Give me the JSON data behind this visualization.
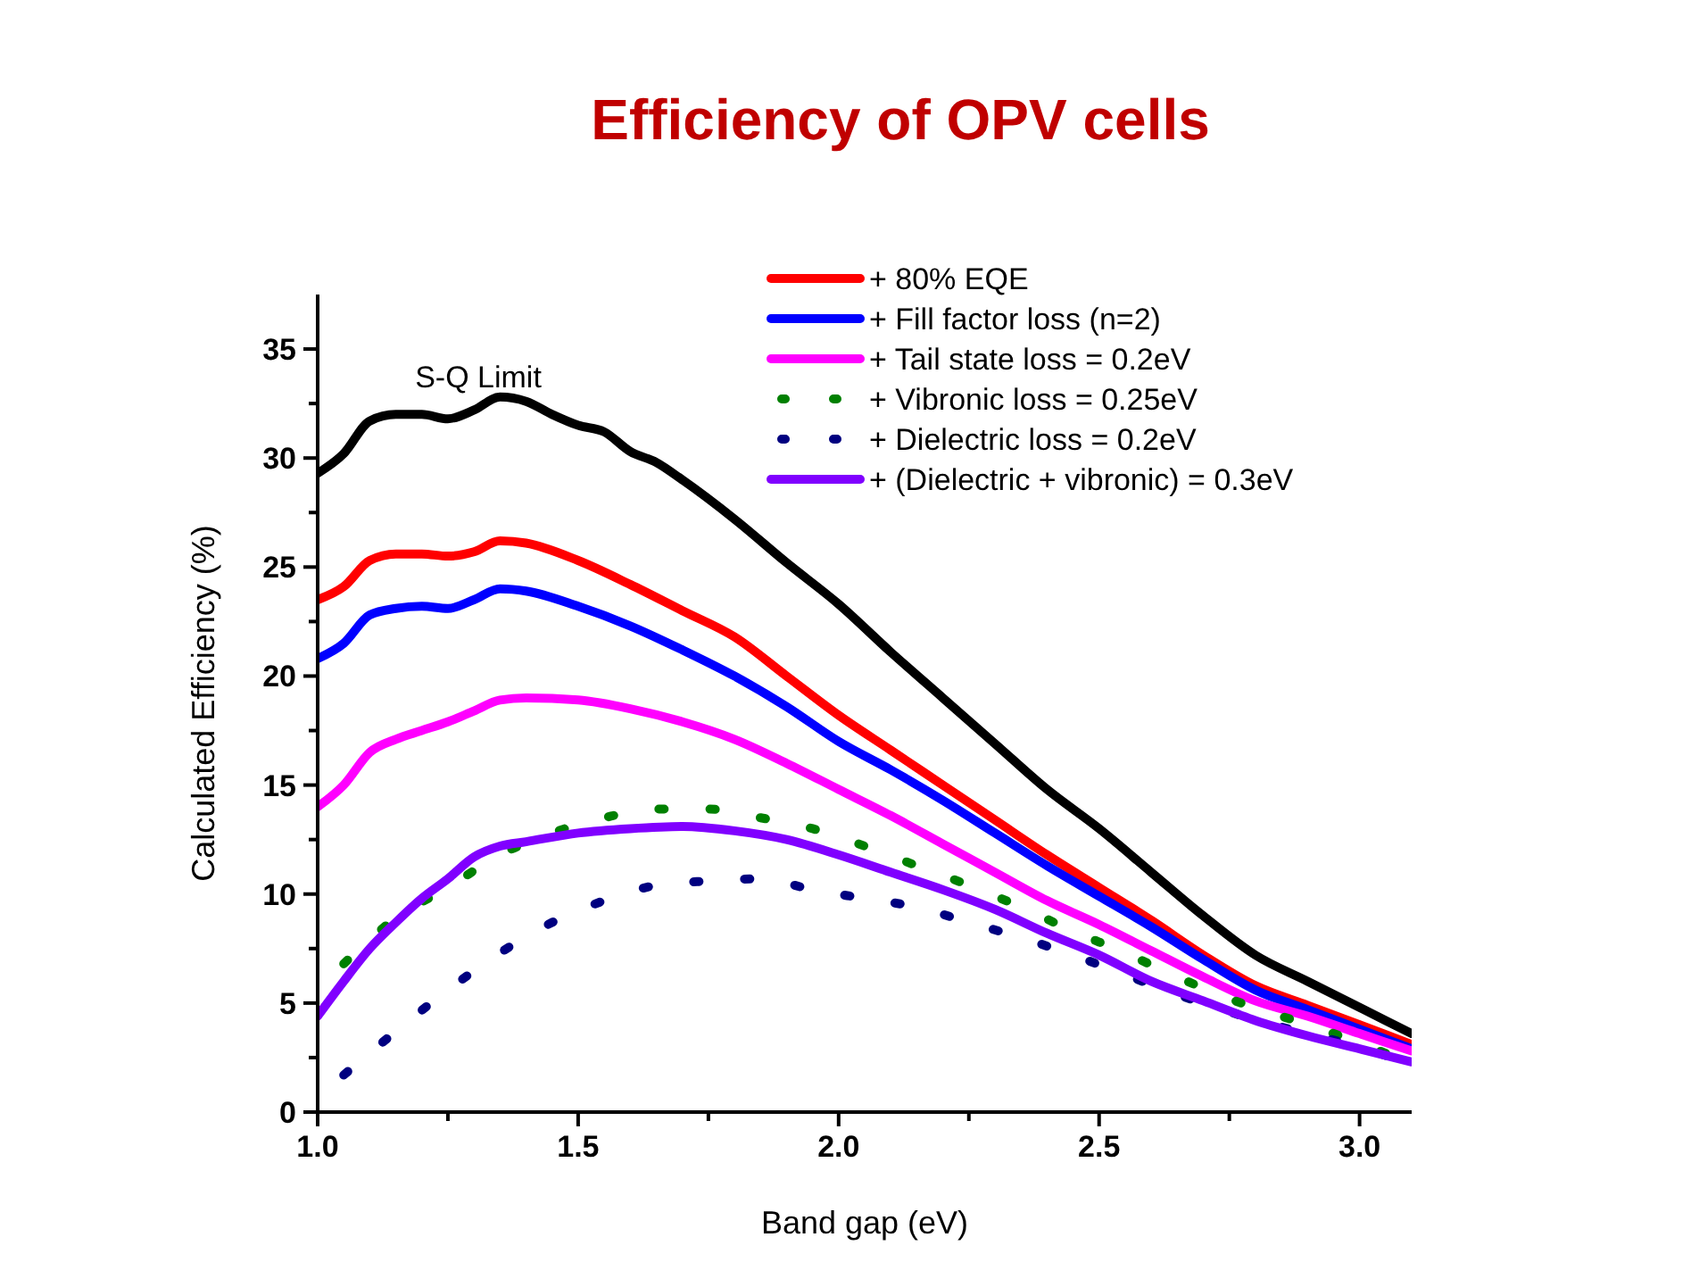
{
  "chart_data": {
    "type": "line",
    "title": "Efficiency of OPV cells",
    "xlabel": "Band gap (eV)",
    "ylabel": "Calculated Efficiency (%)",
    "xlim": [
      1.0,
      3.1
    ],
    "ylim": [
      0,
      37.5
    ],
    "xticks": [
      {
        "value": 1,
        "label": "1.0"
      },
      {
        "value": 1.25,
        "label": null
      },
      {
        "value": 1.5,
        "label": "1.5"
      },
      {
        "value": 1.75,
        "label": null
      },
      {
        "value": 2,
        "label": "2.0"
      },
      {
        "value": 2.25,
        "label": null
      },
      {
        "value": 2.5,
        "label": "2.5"
      },
      {
        "value": 2.75,
        "label": null
      },
      {
        "value": 3,
        "label": "3.0"
      }
    ],
    "yticks": [
      0,
      {
        "value": 2.5,
        "label": null
      },
      5,
      {
        "value": 7.5,
        "label": null
      },
      10,
      {
        "value": 12.5,
        "label": null
      },
      15,
      {
        "value": 17.5,
        "label": null
      },
      20,
      {
        "value": 22.5,
        "label": null
      },
      25,
      {
        "value": 27.5,
        "label": null
      },
      30,
      {
        "value": 32.5,
        "label": null
      },
      35
    ],
    "legend": "top right",
    "grid": false,
    "marker": "none",
    "annotations": [
      "S-Q Limit"
    ],
    "series": [
      {
        "color": "#000000",
        "line_style": "solid",
        "x": [
          1.0,
          1.05,
          1.1,
          1.15,
          1.2,
          1.25,
          1.3,
          1.35,
          1.4,
          1.45,
          1.5,
          1.55,
          1.6,
          1.65,
          1.7,
          1.8,
          1.9,
          2.0,
          2.1,
          2.2,
          2.3,
          2.4,
          2.5,
          2.6,
          2.7,
          2.8,
          2.9,
          3.0,
          3.1
        ],
        "values": [
          29.3,
          30.2,
          31.7,
          32.0,
          32.0,
          31.8,
          32.2,
          32.8,
          32.6,
          32.0,
          31.5,
          31.2,
          30.3,
          29.8,
          29.0,
          27.2,
          25.2,
          23.3,
          21.1,
          19.0,
          16.9,
          14.8,
          13.0,
          11.0,
          9.0,
          7.2,
          6.0,
          4.8,
          3.6
        ]
      },
      {
        "name": "+ 80% EQE",
        "color": "#ff0000",
        "line_style": "solid",
        "x": [
          1.0,
          1.05,
          1.1,
          1.15,
          1.2,
          1.25,
          1.3,
          1.35,
          1.4,
          1.5,
          1.6,
          1.7,
          1.8,
          1.9,
          2.0,
          2.1,
          2.2,
          2.3,
          2.4,
          2.5,
          2.6,
          2.7,
          2.8,
          2.9,
          3.0,
          3.1
        ],
        "values": [
          23.5,
          24.1,
          25.3,
          25.6,
          25.6,
          25.5,
          25.7,
          26.2,
          26.1,
          25.3,
          24.2,
          23.0,
          21.8,
          20.0,
          18.2,
          16.6,
          15.0,
          13.4,
          11.8,
          10.3,
          8.8,
          7.2,
          5.8,
          4.9,
          4.0,
          3.1
        ]
      },
      {
        "name": "+ Fill factor loss (n=2)",
        "color": "#0000ff",
        "line_style": "solid",
        "x": [
          1.0,
          1.05,
          1.1,
          1.15,
          1.2,
          1.25,
          1.3,
          1.35,
          1.4,
          1.5,
          1.6,
          1.7,
          1.8,
          1.9,
          2.0,
          2.1,
          2.2,
          2.3,
          2.4,
          2.5,
          2.6,
          2.7,
          2.8,
          2.9,
          3.0,
          3.1
        ],
        "values": [
          20.8,
          21.5,
          22.8,
          23.1,
          23.2,
          23.1,
          23.5,
          24.0,
          23.9,
          23.2,
          22.3,
          21.2,
          20.0,
          18.6,
          17.0,
          15.7,
          14.3,
          12.8,
          11.3,
          9.9,
          8.5,
          7.0,
          5.6,
          4.7,
          3.8,
          2.9
        ]
      },
      {
        "name": "+ Tail state loss = 0.2eV",
        "color": "#ff00ff",
        "line_style": "solid",
        "x": [
          1.0,
          1.05,
          1.1,
          1.15,
          1.2,
          1.25,
          1.3,
          1.35,
          1.4,
          1.5,
          1.6,
          1.7,
          1.8,
          1.9,
          2.0,
          2.1,
          2.2,
          2.3,
          2.4,
          2.5,
          2.6,
          2.7,
          2.8,
          2.9,
          3.0,
          3.1
        ],
        "values": [
          14.0,
          15.0,
          16.5,
          17.1,
          17.5,
          17.9,
          18.4,
          18.9,
          19.0,
          18.9,
          18.5,
          17.9,
          17.1,
          16.0,
          14.8,
          13.6,
          12.3,
          11.0,
          9.7,
          8.6,
          7.4,
          6.2,
          5.1,
          4.4,
          3.6,
          2.8
        ]
      },
      {
        "name": "+ Vibronic loss = 0.25eV",
        "color": "#008000",
        "line_style": "dotted",
        "x": [
          1.05,
          1.15,
          1.25,
          1.35,
          1.45,
          1.55,
          1.65,
          1.75,
          1.85,
          1.95,
          2.05,
          2.15,
          2.25,
          2.35,
          2.45,
          2.55,
          2.65,
          2.75,
          2.85,
          2.95,
          3.05
        ],
        "values": [
          6.8,
          8.9,
          10.3,
          11.8,
          12.8,
          13.5,
          13.9,
          13.9,
          13.5,
          13.0,
          12.2,
          11.3,
          10.4,
          9.4,
          8.3,
          7.3,
          6.2,
          5.2,
          4.4,
          3.6,
          2.7
        ]
      },
      {
        "name": "+ Dielectric loss = 0.2eV",
        "color": "#000080",
        "line_style": "dotted",
        "x": [
          1.05,
          1.15,
          1.25,
          1.35,
          1.45,
          1.55,
          1.65,
          1.75,
          1.85,
          1.95,
          2.05,
          2.15,
          2.25,
          2.35,
          2.45,
          2.55,
          2.65,
          2.75,
          2.85,
          2.95,
          3.05
        ],
        "values": [
          1.7,
          3.7,
          5.6,
          7.3,
          8.7,
          9.7,
          10.4,
          10.6,
          10.7,
          10.2,
          9.8,
          9.4,
          8.7,
          8.0,
          7.2,
          6.3,
          5.4,
          4.6,
          3.9,
          3.3,
          2.6
        ]
      },
      {
        "name": "+ (Dielectric + vibronic) = 0.3eV",
        "color": "#8000ff",
        "line_style": "solid",
        "x": [
          1.0,
          1.05,
          1.1,
          1.15,
          1.2,
          1.25,
          1.3,
          1.35,
          1.4,
          1.5,
          1.6,
          1.7,
          1.8,
          1.9,
          2.0,
          2.1,
          2.2,
          2.3,
          2.4,
          2.5,
          2.6,
          2.7,
          2.8,
          2.9,
          3.0,
          3.1
        ],
        "values": [
          4.4,
          6.0,
          7.5,
          8.7,
          9.8,
          10.7,
          11.7,
          12.2,
          12.4,
          12.8,
          13.0,
          13.1,
          12.9,
          12.5,
          11.8,
          11.0,
          10.2,
          9.3,
          8.2,
          7.2,
          6.0,
          5.1,
          4.2,
          3.5,
          2.9,
          2.3
        ]
      }
    ]
  }
}
